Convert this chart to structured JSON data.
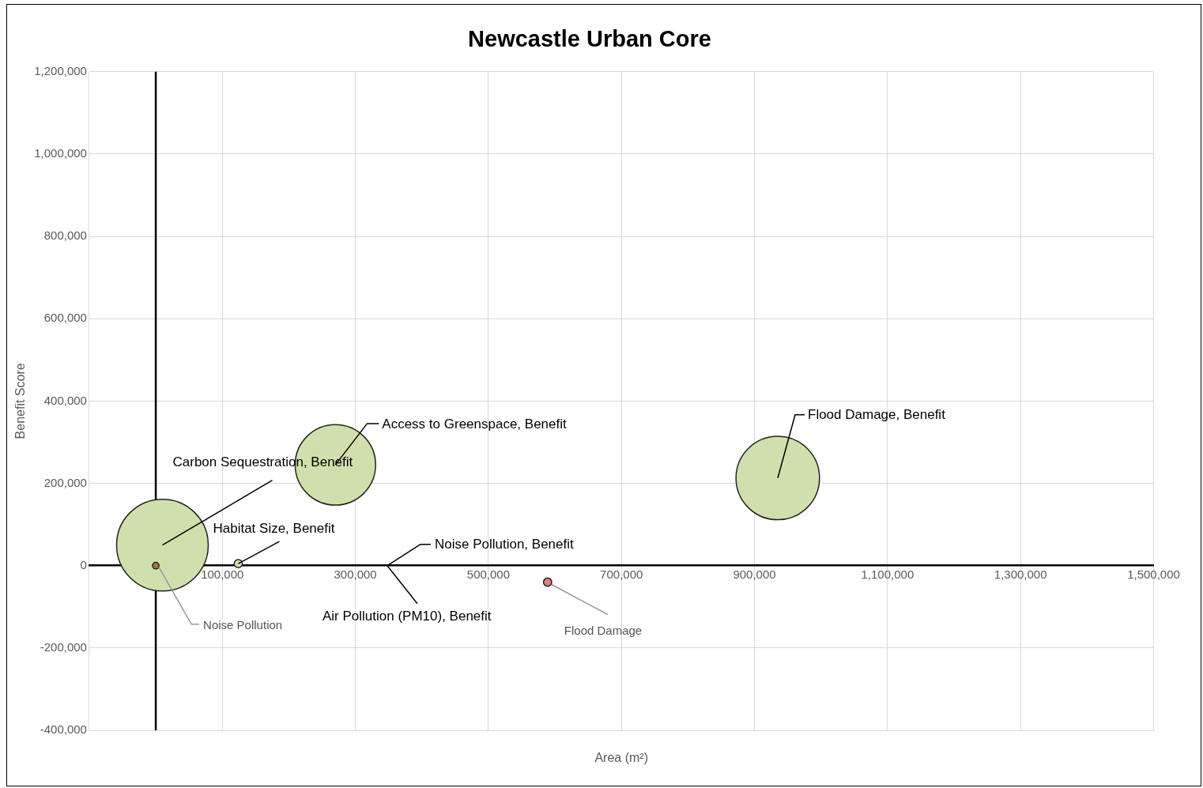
{
  "chart_data": {
    "type": "bubble",
    "title": "Newcastle Urban Core",
    "xlabel": "Area (m²)",
    "ylabel": "Benefit Score",
    "series": [
      {
        "colors": [
          "#d0e0ac",
          "#d0e0ac",
          "#d0e0ac",
          "#d0e0ac"
        ],
        "x": [
          10000,
          270000,
          935000,
          124000
        ],
        "values": [
          50000,
          245000,
          213000,
          5000
        ],
        "sizes": [
          1,
          0.77,
          0.83,
          0.008
        ]
      },
      {
        "colors": [
          "#a07840",
          "#d98080"
        ],
        "x": [
          0,
          589000
        ],
        "values": [
          0,
          -40000
        ],
        "sizes": [
          0.005,
          0.008
        ]
      }
    ],
    "xlim": [
      -100000,
      1500000
    ],
    "xticks": [
      {
        "value": -100000,
        "label": null
      },
      {
        "value": 100000,
        "label": "100,000"
      },
      {
        "value": 300000,
        "label": "300,000"
      },
      {
        "value": 500000,
        "label": "500,000"
      },
      {
        "value": 700000,
        "label": "700,000"
      },
      {
        "value": 900000,
        "label": "900,000"
      },
      {
        "value": 1100000,
        "label": "1,100,000"
      },
      {
        "value": 1300000,
        "label": "1,300,000"
      },
      {
        "value": 1500000,
        "label": "1,500,000"
      }
    ],
    "ylim": [
      -400000,
      1200000
    ],
    "yticks": [
      {
        "value": -400000,
        "label": "-400,000"
      },
      {
        "value": -200000,
        "label": "-200,000"
      },
      0,
      {
        "value": 200000,
        "label": "200,000"
      },
      {
        "value": 400000,
        "label": "400,000"
      },
      {
        "value": 600000,
        "label": "600,000"
      },
      {
        "value": 800000,
        "label": "800,000"
      },
      {
        "value": 1000000,
        "label": "1,000,000"
      },
      {
        "value": 1200000,
        "label": "1,200,000"
      }
    ],
    "grid": true,
    "annotations": [
      {
        "text": "Carbon Sequestration, Benefit",
        "x": 10000,
        "y": 50000
      },
      {
        "text": "Access to Greenspace, Benefit",
        "x": 270000,
        "y": 245000
      },
      {
        "text": "Flood Damage, Benefit",
        "x": 935000,
        "y": 213000
      },
      {
        "text": "Habitat Size, Benefit",
        "x": 124000,
        "y": 5000
      },
      "Noise Pollution, Benefit",
      "Air Pollution (PM10), Benefit",
      {
        "text": "Noise Pollution",
        "x": 0,
        "y": 0
      },
      {
        "text": "Flood Damage",
        "x": 589000,
        "y": -40000
      }
    ]
  }
}
